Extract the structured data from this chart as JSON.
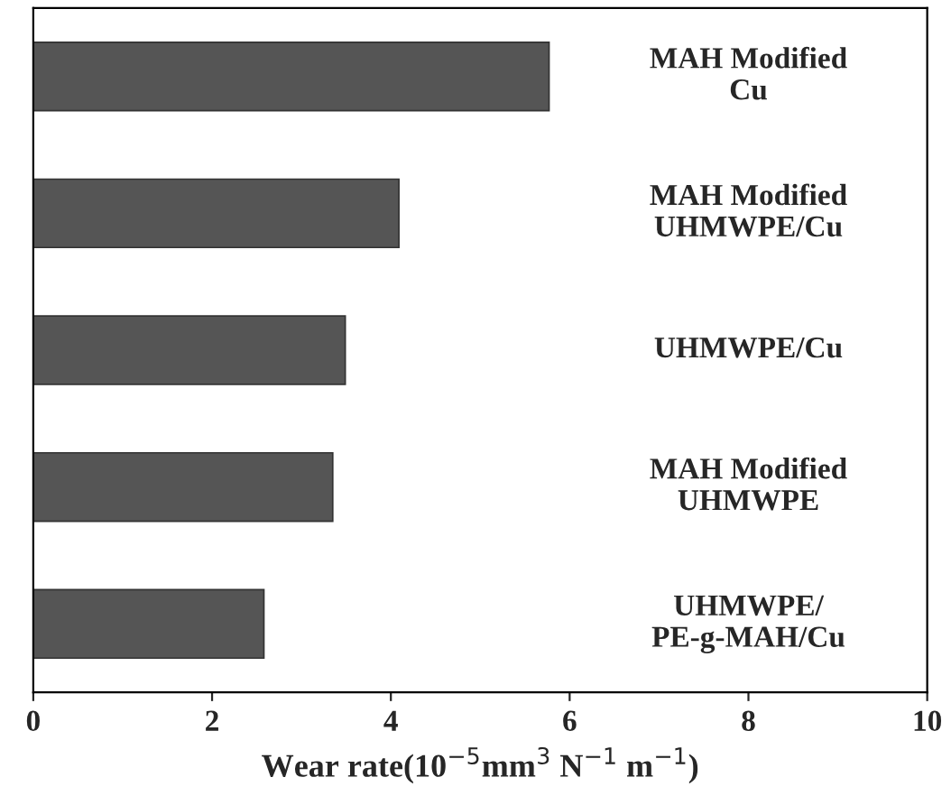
{
  "chart_data": {
    "type": "bar",
    "orientation": "horizontal",
    "xlabel": "Wear rate(10$^{−5}$mm$^{3}$ N$^{−1}$ m$^{−1}$)",
    "categories": [
      "MAH Modified\nCu",
      "MAH Modified\nUHMWPE/Cu",
      "UHMWPE/Cu",
      "MAH Modified\nUHMWPE",
      "UHMWPE/\nPE-g-MAH/Cu"
    ],
    "values": [
      5.77,
      4.09,
      3.49,
      3.35,
      2.58
    ],
    "color": "#555555",
    "xlim": [
      0,
      10
    ],
    "xticks": [
      0,
      2,
      4,
      6,
      8,
      10
    ],
    "grid": false
  }
}
